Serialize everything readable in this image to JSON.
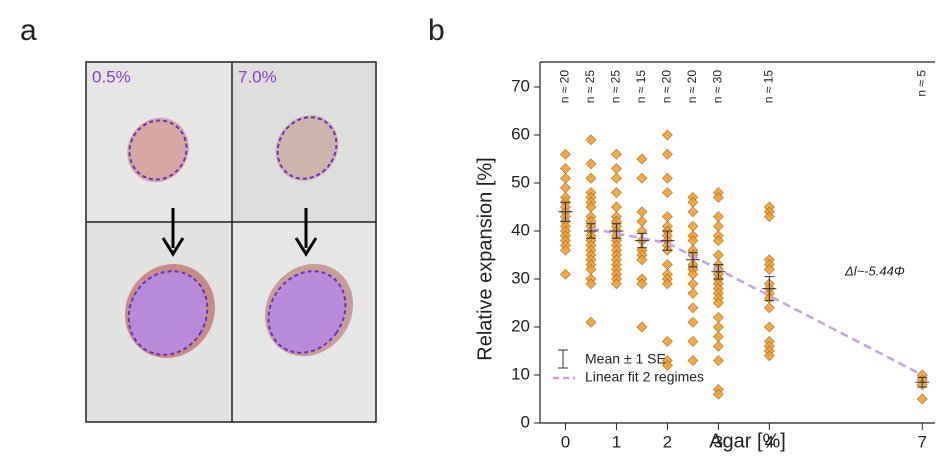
{
  "panel_labels": [
    "a",
    "b"
  ],
  "images": {
    "labels": [
      "0.5%",
      "7.0%"
    ]
  },
  "chart_data": {
    "type": "scatter",
    "xlabel": "Agar [%]",
    "ylabel": "Relative expansion [%]",
    "xlim": [
      -0.5,
      7.25
    ],
    "ylim": [
      0,
      72.5
    ],
    "xticks": [
      0,
      1,
      2,
      3,
      4,
      7
    ],
    "yticks": [
      0,
      10,
      20,
      30,
      40,
      50,
      60,
      70
    ],
    "point_color": "#f0a030",
    "groups": [
      {
        "x": 0,
        "values": [
          56,
          53,
          51,
          49,
          47,
          46,
          45,
          44,
          43,
          42,
          41,
          40,
          39,
          38,
          37,
          36,
          31
        ]
      },
      {
        "x": 0.5,
        "values": [
          59,
          54,
          51,
          48,
          47,
          46,
          45,
          43,
          42,
          41,
          40,
          39,
          38,
          37,
          36,
          35,
          34,
          33,
          32,
          30,
          29,
          21
        ]
      },
      {
        "x": 1,
        "values": [
          56,
          53,
          51,
          48,
          45,
          43,
          42,
          41,
          40,
          39,
          38,
          37,
          36,
          35,
          34,
          33,
          32,
          31,
          30,
          29
        ]
      },
      {
        "x": 1.5,
        "values": [
          55,
          51,
          44,
          42,
          40,
          38,
          36,
          35,
          34,
          30,
          29,
          20
        ]
      },
      {
        "x": 2,
        "values": [
          60,
          56,
          51,
          48,
          43,
          41,
          40,
          39,
          38,
          37,
          36,
          33,
          31,
          30,
          29,
          17,
          13,
          12
        ]
      },
      {
        "x": 2.5,
        "values": [
          47,
          46,
          44,
          41,
          39,
          38,
          36,
          35,
          33,
          32,
          31,
          29,
          27,
          24,
          21,
          17,
          13
        ]
      },
      {
        "x": 3,
        "values": [
          48,
          47,
          43,
          41,
          39,
          38,
          35,
          33,
          32,
          31,
          30,
          29,
          28,
          27,
          26,
          25,
          22,
          20,
          18,
          16,
          13,
          7,
          6
        ]
      },
      {
        "x": 4,
        "values": [
          45,
          44,
          43,
          34,
          33,
          32,
          29,
          28,
          27,
          26,
          24,
          20,
          17,
          16,
          15,
          14
        ]
      },
      {
        "x": 7,
        "values": [
          10,
          9,
          8,
          5
        ]
      }
    ],
    "series": [
      {
        "name": "Mean ± 1 SE",
        "color": "#333333",
        "x": [
          0,
          0.5,
          1,
          1.5,
          2,
          2.5,
          3,
          4,
          7
        ],
        "values": [
          44,
          40,
          40,
          38,
          38,
          34,
          31.5,
          28,
          8.5
        ],
        "errors": [
          2,
          1.5,
          1.5,
          1.5,
          2,
          1.5,
          1.5,
          2.5,
          1
        ]
      },
      {
        "name": "Linear fit 2 regimes",
        "color": "#c9a0e8",
        "x": [
          0.5,
          2,
          7
        ],
        "values": [
          40.5,
          37.5,
          10
        ]
      }
    ],
    "n_annotations": [
      {
        "x": 0,
        "label": "n ≈ 20"
      },
      {
        "x": 0.5,
        "label": "n ≈ 25"
      },
      {
        "x": 1,
        "label": "n ≈ 25"
      },
      {
        "x": 1.5,
        "label": "n ≈ 15"
      },
      {
        "x": 2,
        "label": "n ≈ 20"
      },
      {
        "x": 2.5,
        "label": "n ≈ 20"
      },
      {
        "x": 3,
        "label": "n ≈ 30"
      },
      {
        "x": 4,
        "label": "n ≈ 15"
      },
      {
        "x": 7,
        "label": "n ≈ 5"
      }
    ],
    "annotation": "Δl~-5.44Φ"
  }
}
